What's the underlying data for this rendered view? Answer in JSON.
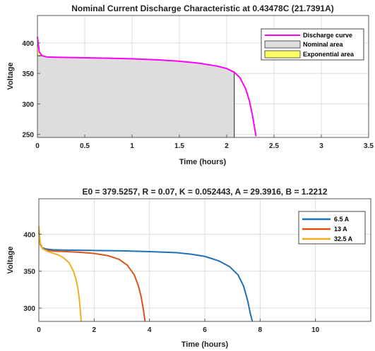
{
  "chart_data": [
    {
      "type": "line",
      "title": "Nominal Current Discharge Characteristic at 0.43478C (21.7391A)",
      "xlabel": "Time (hours)",
      "ylabel": "Voltage",
      "xlim": [
        0,
        3.5
      ],
      "ylim": [
        245,
        445
      ],
      "xticks": [
        "0",
        "0.5",
        "1",
        "1.5",
        "2",
        "2.5",
        "3",
        "3.5"
      ],
      "yticks": [
        "250",
        "300",
        "350",
        "400"
      ],
      "grid": true,
      "legend_position": "top-right",
      "series": [
        {
          "name": "Discharge curve",
          "color": "#ff00ff",
          "x": [
            0,
            0.02,
            0.05,
            0.1,
            0.2,
            0.4,
            0.7,
            1.0,
            1.3,
            1.5,
            1.7,
            1.9,
            2.0,
            2.08,
            2.14,
            2.2,
            2.24,
            2.27,
            2.29,
            2.31
          ],
          "y": [
            410,
            385,
            379,
            377,
            376.5,
            376,
            375,
            374,
            372,
            370,
            367,
            362,
            358,
            352,
            343,
            325,
            305,
            283,
            265,
            247
          ]
        }
      ],
      "areas": [
        {
          "name": "Nominal area",
          "color": "#dddddd",
          "x_end": 2.08,
          "y_base": 245
        },
        {
          "name": "Exponential area",
          "color": "#ffff66",
          "x_end": 0.05,
          "y_base": 379
        }
      ]
    },
    {
      "type": "line",
      "title": "E0 = 379.5257, R = 0.07, K = 0.052443, A = 29.3916, B = 1.2212",
      "xlabel": "Time (hours)",
      "ylabel": "Voltage",
      "xlim": [
        0,
        12
      ],
      "ylim": [
        282,
        448
      ],
      "xticks": [
        "0",
        "2",
        "4",
        "6",
        "8",
        "10"
      ],
      "xtick_values": [
        0,
        2,
        4,
        6,
        8,
        10
      ],
      "yticks": [
        "300",
        "350",
        "400"
      ],
      "grid": true,
      "legend_position": "top-right",
      "series": [
        {
          "name": "6.5 A",
          "color": "#1f6fb4",
          "x": [
            0,
            0.05,
            0.12,
            0.25,
            0.5,
            1,
            2,
            3,
            4,
            5,
            5.5,
            6,
            6.5,
            6.9,
            7.2,
            7.4,
            7.55,
            7.65,
            7.72
          ],
          "y": [
            402,
            388,
            382,
            380,
            379,
            378.5,
            378,
            377.5,
            376.5,
            375,
            373,
            370,
            364,
            356,
            345,
            330,
            310,
            292,
            282
          ]
        },
        {
          "name": "13 A",
          "color": "#d95319",
          "x": [
            0,
            0.05,
            0.15,
            0.3,
            0.6,
            1,
            1.5,
            2,
            2.5,
            2.9,
            3.2,
            3.45,
            3.6,
            3.7,
            3.78,
            3.84
          ],
          "y": [
            406,
            386,
            380,
            378,
            377,
            376.5,
            375.5,
            374,
            371,
            366,
            358,
            345,
            330,
            315,
            298,
            282
          ]
        },
        {
          "name": "32.5 A",
          "color": "#edb120",
          "x": [
            0,
            0.05,
            0.15,
            0.3,
            0.5,
            0.7,
            0.9,
            1.1,
            1.25,
            1.35,
            1.42,
            1.47,
            1.5,
            1.53
          ],
          "y": [
            411,
            388,
            380,
            377,
            374.5,
            372,
            368,
            361,
            350,
            338,
            325,
            310,
            296,
            282
          ]
        }
      ]
    }
  ]
}
